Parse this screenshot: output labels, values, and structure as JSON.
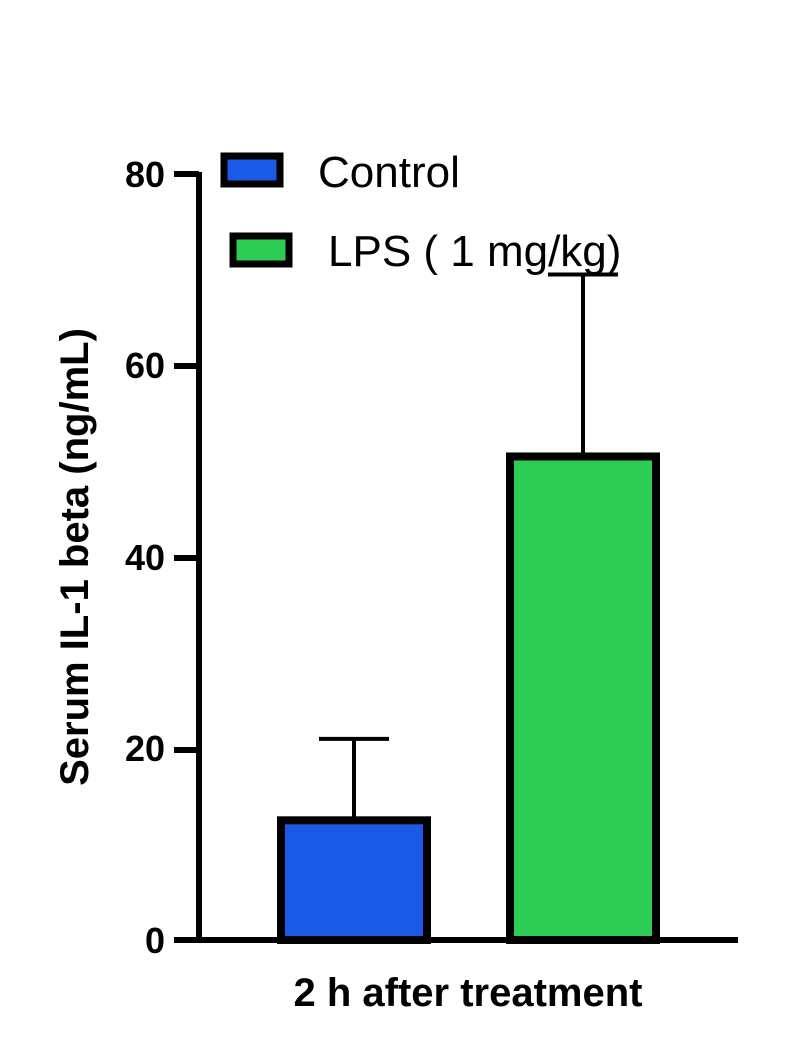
{
  "chart_data": {
    "type": "bar",
    "title": "",
    "xlabel": "2 h after treatment",
    "ylabel": "Serum IL-1 beta (ng/mL)",
    "ylim": [
      0,
      80
    ],
    "yticks": [
      "0",
      "20",
      "40",
      "60",
      "80"
    ],
    "grid": false,
    "legend_position": "top-left",
    "series": [
      {
        "name": "Control",
        "value": 12.5,
        "error": 8.5,
        "color": "#1a5ae6"
      },
      {
        "name": "LPS ( 1 mg/kg)",
        "value": 50.5,
        "error": 19.0,
        "color": "#2dcd55"
      }
    ]
  }
}
